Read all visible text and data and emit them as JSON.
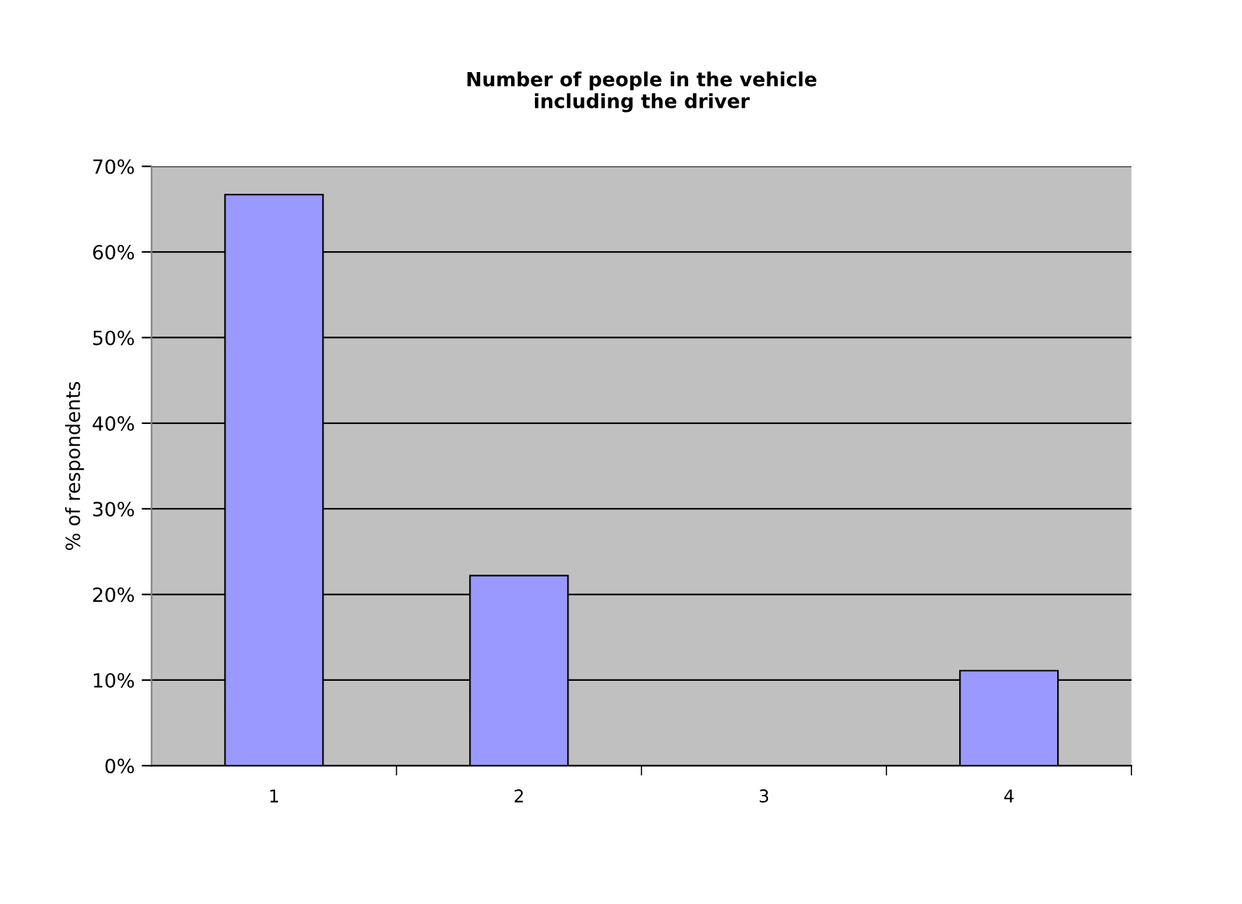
{
  "chart_data": {
    "type": "bar",
    "title": "Number of people in the vehicle\nincluding the driver",
    "ylabel": "% of respondents",
    "categories": [
      "1",
      "2",
      "3",
      "4"
    ],
    "values": [
      66.7,
      22.2,
      0,
      11.1
    ],
    "color": "#9999ff",
    "ylim": [
      0,
      70
    ],
    "yticks": [
      {
        "value": 0,
        "label": "0%"
      },
      {
        "value": 10,
        "label": "10%"
      },
      {
        "value": 20,
        "label": "20%"
      },
      {
        "value": 30,
        "label": "30%"
      },
      {
        "value": 40,
        "label": "40%"
      },
      {
        "value": 50,
        "label": "50%"
      },
      {
        "value": 60,
        "label": "60%"
      },
      {
        "value": 70,
        "label": "70%"
      }
    ],
    "grid": "y",
    "legend": false
  }
}
